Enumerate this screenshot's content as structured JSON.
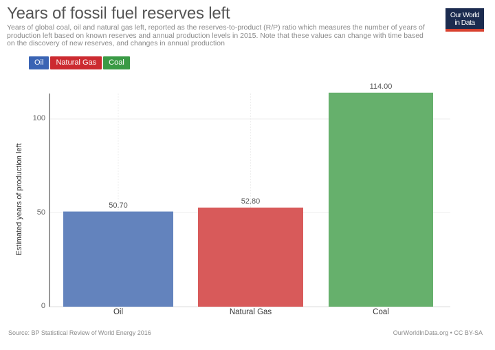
{
  "header": {
    "title": "Years of fossil fuel reserves left",
    "subtitle": "Years of global coal, oil and natural gas left, reported as the reserves-to-product (R/P) ratio which measures the number of years of production left based on known reserves and annual production levels in 2015. Note that these values can change with time based on the discovery of new reserves, and changes in annual production",
    "logo_line1": "Our World",
    "logo_line2": "in Data"
  },
  "legend": [
    {
      "label": "Oil",
      "color": "#3a64b4"
    },
    {
      "label": "Natural Gas",
      "color": "#cc2a30"
    },
    {
      "label": "Coal",
      "color": "#3a9a45"
    }
  ],
  "footer": {
    "source": "Source: BP Statistical Review of World Energy 2016",
    "credit": "OurWorldInData.org • CC BY-SA"
  },
  "chart_data": {
    "type": "bar",
    "title": "Years of fossil fuel reserves left",
    "subtitle": "Years of global coal, oil and natural gas left, reported as the reserves-to-product (R/P) ratio which measures the number of years of production left based on known reserves and annual production levels in 2015. Note that these values can change with time based on the discovery of new reserves, and changes in annual production",
    "categories": [
      "Oil",
      "Natural Gas",
      "Coal"
    ],
    "values": [
      50.7,
      52.8,
      114.0
    ],
    "value_labels": [
      "50.70",
      "52.80",
      "114.00"
    ],
    "colors": [
      "#6383bd",
      "#d85a5a",
      "#66b06c"
    ],
    "xlabel": "",
    "ylabel": "Estimated years of production left",
    "yticks": [
      0,
      50,
      100
    ],
    "ylim": [
      0,
      114
    ],
    "grid": true,
    "legend_position": "top-left",
    "legend": [
      "Oil",
      "Natural Gas",
      "Coal"
    ]
  }
}
